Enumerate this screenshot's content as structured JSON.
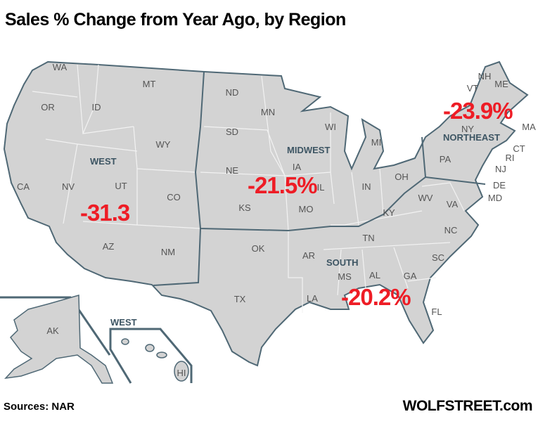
{
  "title": "Sales % Change from Year Ago, by Region",
  "source": "Sources: NAR",
  "brand": "WOLFSTREET.com",
  "colors": {
    "land": "#d3d3d3",
    "region_border": "#4f6875",
    "state_border": "#f2f2f2",
    "value": "#ee1c25",
    "region_label": "#3d5563"
  },
  "regions": [
    {
      "name": "WEST",
      "value": "-31.3"
    },
    {
      "name": "MIDWEST",
      "value": "-21.5%"
    },
    {
      "name": "NORTHEAST",
      "value": "-23.9%"
    },
    {
      "name": "SOUTH",
      "value": "-20.2%"
    }
  ],
  "inset_label": "WEST",
  "states": [
    "WA",
    "OR",
    "ID",
    "MT",
    "WY",
    "CA",
    "NV",
    "UT",
    "CO",
    "AZ",
    "NM",
    "ND",
    "SD",
    "NE",
    "KS",
    "OK",
    "TX",
    "MN",
    "IA",
    "MO",
    "AR",
    "LA",
    "WI",
    "IL",
    "MI",
    "IN",
    "OH",
    "KY",
    "TN",
    "MS",
    "AL",
    "GA",
    "FL",
    "SC",
    "NC",
    "VA",
    "WV",
    "PA",
    "NY",
    "VT",
    "NH",
    "ME",
    "MA",
    "CT",
    "RI",
    "NJ",
    "DE",
    "MD",
    "AK",
    "HI"
  ]
}
